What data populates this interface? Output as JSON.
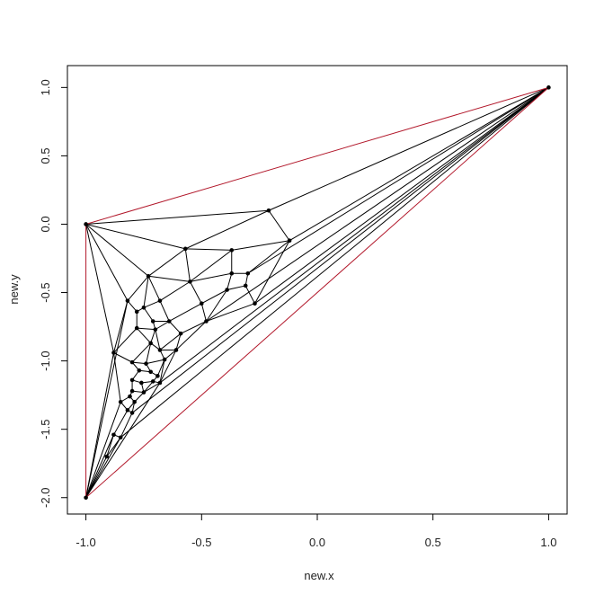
{
  "chart_data": {
    "type": "scatter",
    "xlabel": "new.x",
    "ylabel": "new.y",
    "x": [
      -1,
      1,
      -1,
      -0.21,
      -0.12,
      -0.57,
      -0.37,
      -0.73,
      -0.55,
      -0.37,
      -0.3,
      -0.31,
      -0.39,
      -0.82,
      -0.68,
      -0.5,
      -0.27,
      -0.78,
      -0.75,
      -0.64,
      -0.48,
      -0.71,
      -0.78,
      -0.7,
      -0.59,
      -0.88,
      -0.72,
      -0.68,
      -0.61,
      -0.8,
      -0.74,
      -0.66,
      -0.77,
      -0.72,
      -0.69,
      -0.8,
      -0.76,
      -0.71,
      -0.68,
      -0.8,
      -0.75,
      -0.85,
      -0.81,
      -0.79,
      -0.82,
      -0.8,
      -0.88,
      -0.85,
      -0.91
    ],
    "values": [
      0,
      1,
      -2,
      0.1,
      -0.12,
      -0.18,
      -0.19,
      -0.38,
      -0.42,
      -0.36,
      -0.36,
      -0.45,
      -0.48,
      -0.56,
      -0.56,
      -0.58,
      -0.58,
      -0.64,
      -0.61,
      -0.71,
      -0.71,
      -0.71,
      -0.76,
      -0.77,
      -0.8,
      -0.94,
      -0.87,
      -0.92,
      -0.92,
      -1.01,
      -1.02,
      -0.99,
      -1.07,
      -1.08,
      -1.11,
      -1.14,
      -1.16,
      -1.15,
      -1.16,
      -1.22,
      -1.23,
      -1.3,
      -1.26,
      -1.3,
      -1.36,
      -1.38,
      -1.54,
      -1.56,
      -1.7
    ],
    "color": "#000000",
    "edges": [
      [
        0,
        3
      ],
      [
        0,
        5
      ],
      [
        0,
        7
      ],
      [
        0,
        13
      ],
      [
        0,
        25
      ],
      [
        3,
        1
      ],
      [
        3,
        4
      ],
      [
        3,
        5
      ],
      [
        4,
        1
      ],
      [
        4,
        6
      ],
      [
        4,
        10
      ],
      [
        4,
        16
      ],
      [
        5,
        6
      ],
      [
        5,
        7
      ],
      [
        5,
        8
      ],
      [
        6,
        8
      ],
      [
        6,
        9
      ],
      [
        7,
        8
      ],
      [
        7,
        13
      ],
      [
        7,
        14
      ],
      [
        7,
        18
      ],
      [
        8,
        9
      ],
      [
        8,
        14
      ],
      [
        8,
        15
      ],
      [
        9,
        10
      ],
      [
        9,
        12
      ],
      [
        10,
        11
      ],
      [
        11,
        12
      ],
      [
        11,
        16
      ],
      [
        12,
        15
      ],
      [
        16,
        1
      ],
      [
        16,
        20
      ],
      [
        15,
        20
      ],
      [
        15,
        19
      ],
      [
        14,
        19
      ],
      [
        14,
        18
      ],
      [
        13,
        17
      ],
      [
        13,
        25
      ],
      [
        13,
        2
      ],
      [
        17,
        18
      ],
      [
        17,
        22
      ],
      [
        18,
        21
      ],
      [
        21,
        19
      ],
      [
        21,
        23
      ],
      [
        19,
        23
      ],
      [
        19,
        24
      ],
      [
        20,
        24
      ],
      [
        20,
        28
      ],
      [
        20,
        1
      ],
      [
        24,
        28
      ],
      [
        22,
        23
      ],
      [
        22,
        25
      ],
      [
        22,
        26
      ],
      [
        23,
        26
      ],
      [
        23,
        27
      ],
      [
        24,
        27
      ],
      [
        26,
        27
      ],
      [
        27,
        28
      ],
      [
        25,
        29
      ],
      [
        25,
        41
      ],
      [
        25,
        2
      ],
      [
        26,
        29
      ],
      [
        26,
        30
      ],
      [
        27,
        31
      ],
      [
        28,
        31
      ],
      [
        28,
        38
      ],
      [
        29,
        30
      ],
      [
        29,
        32
      ],
      [
        30,
        31
      ],
      [
        30,
        33
      ],
      [
        31,
        34
      ],
      [
        31,
        38
      ],
      [
        32,
        33
      ],
      [
        32,
        35
      ],
      [
        33,
        34
      ],
      [
        34,
        37
      ],
      [
        37,
        38
      ],
      [
        35,
        36
      ],
      [
        36,
        37
      ],
      [
        35,
        39
      ],
      [
        36,
        40
      ],
      [
        37,
        40
      ],
      [
        38,
        40
      ],
      [
        39,
        40
      ],
      [
        39,
        42
      ],
      [
        40,
        43
      ],
      [
        42,
        43
      ],
      [
        41,
        42
      ],
      [
        41,
        44
      ],
      [
        43,
        44
      ],
      [
        43,
        45
      ],
      [
        44,
        45
      ],
      [
        44,
        46
      ],
      [
        45,
        47
      ],
      [
        46,
        47
      ],
      [
        46,
        48
      ],
      [
        47,
        48
      ],
      [
        48,
        2
      ],
      [
        41,
        2
      ],
      [
        38,
        1
      ],
      [
        38,
        2
      ],
      [
        45,
        1
      ],
      [
        47,
        1
      ],
      [
        47,
        2
      ],
      [
        46,
        2
      ],
      [
        10,
        1
      ],
      [
        12,
        20
      ]
    ],
    "edge_color": "#000000",
    "hull_edges": [
      [
        0,
        1
      ],
      [
        0,
        2
      ],
      [
        2,
        1
      ]
    ],
    "hull_color": "#b2182b",
    "xlim": [
      -1.08,
      1.08
    ],
    "ylim": [
      -2.12,
      1.16
    ],
    "xticks": [
      {
        "value": -1,
        "label": "-1.0"
      },
      {
        "value": -0.5,
        "label": "-0.5"
      },
      {
        "value": 0,
        "label": "0.0"
      },
      {
        "value": 0.5,
        "label": "0.5"
      },
      {
        "value": 1,
        "label": "1.0"
      }
    ],
    "yticks": [
      {
        "value": -2,
        "label": "-2.0"
      },
      {
        "value": -1.5,
        "label": "-1.5"
      },
      {
        "value": -1,
        "label": "-1.0"
      },
      {
        "value": -0.5,
        "label": "-0.5"
      },
      {
        "value": 0,
        "label": "0.0"
      },
      {
        "value": 0.5,
        "label": "0.5"
      },
      {
        "value": 1,
        "label": "1.0"
      }
    ]
  }
}
